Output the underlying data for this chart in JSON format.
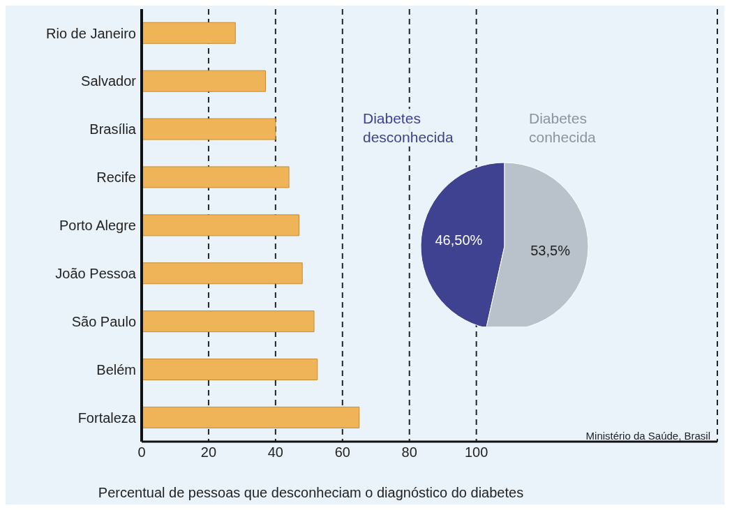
{
  "chart_data": [
    {
      "type": "bar",
      "orientation": "horizontal",
      "xlabel": "Percentual de pessoas que desconheciam o diagnóstico do diabetes",
      "categories": [
        "Rio de Janeiro",
        "Salvador",
        "Brasília",
        "Recife",
        "Porto Alegre",
        "João Pessoa",
        "São Paulo",
        "Belém",
        "Fortaleza"
      ],
      "values": [
        28,
        37,
        40,
        44,
        47,
        48,
        51.5,
        52.5,
        65
      ],
      "color": "#f0b458",
      "xlim": [
        0,
        172
      ],
      "xticks": [
        0,
        20,
        40,
        60,
        80,
        100
      ],
      "grid": "x",
      "annotations": [
        "Ministério da Saúde, Brasil"
      ]
    },
    {
      "type": "pie",
      "categories": [
        "Diabetes desconhecida",
        "Diabetes conhecida"
      ],
      "values": [
        46.5,
        53.5
      ],
      "colors": [
        "#3f4290",
        "#b9c2cb"
      ],
      "value_labels": [
        "46,50%",
        "53,5%"
      ],
      "legend": false
    }
  ]
}
